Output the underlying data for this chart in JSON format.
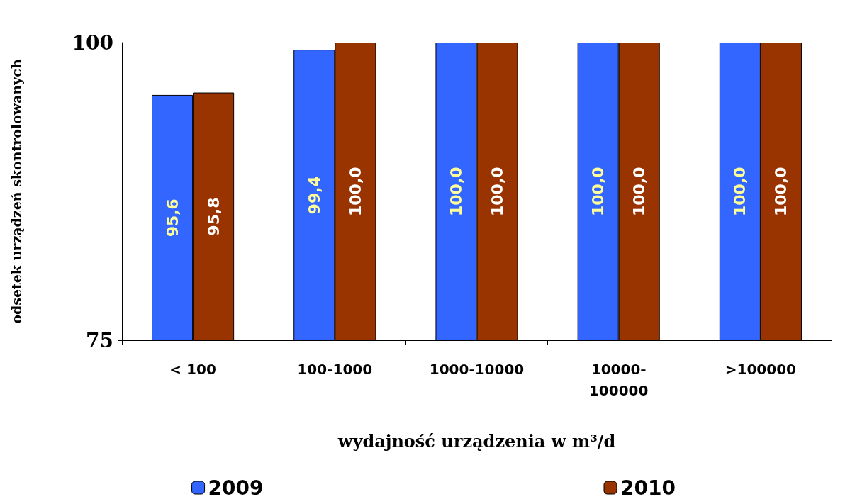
{
  "chart_data": {
    "type": "bar",
    "xlabel": "wydajność urządzenia w m³/d",
    "ylabel": "odsetek urządzeń skontrolowanych",
    "categories": [
      "< 100",
      "100-1000",
      "1000-10000",
      "10000-100000",
      ">100000"
    ],
    "series": [
      {
        "name": "2009",
        "color": "#3366ff",
        "values": [
          95.6,
          99.4,
          100,
          100,
          100
        ],
        "value_labels": [
          "95,6",
          "99,4",
          "100,0",
          "100,0",
          "100,0"
        ]
      },
      {
        "name": "2010",
        "color": "#993300",
        "values": [
          95.8,
          100,
          100,
          100,
          100
        ],
        "value_labels": [
          "95,8",
          "100,0",
          "100,0",
          "100,0",
          "100,0"
        ]
      }
    ],
    "ylim": [
      75,
      100
    ],
    "yticks": [
      75,
      100
    ],
    "grid": false,
    "legend": "bottom"
  }
}
